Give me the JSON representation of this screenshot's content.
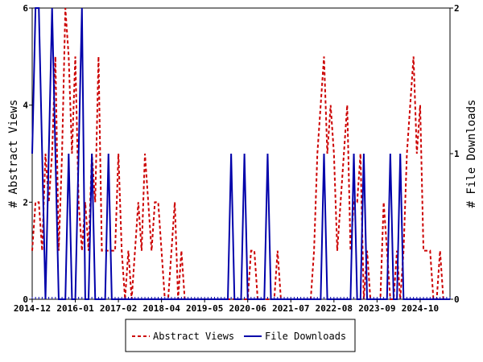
{
  "chart_data": {
    "type": "line",
    "ylabel_left": "# Abstract Views",
    "ylabel_right": "# File Downloads",
    "xlabel": "",
    "ylim_left": [
      0,
      6
    ],
    "ylim_right": [
      0,
      2
    ],
    "left_ticks": [
      "0",
      "2",
      "4",
      "6"
    ],
    "right_ticks": [
      "0",
      "1",
      "2"
    ],
    "x_tick_labels": [
      "2014-12",
      "2016-01",
      "2017-02",
      "2018-04",
      "2019-05",
      "2020-06",
      "2021-07",
      "2022-08",
      "2023-09",
      "2024-10"
    ],
    "month_count": 127,
    "grid": false,
    "legend_position": "bottom",
    "colors": {
      "abstract_views": "#cc0000",
      "file_downloads": "#0000aa"
    },
    "series": [
      {
        "name": "Abstract Views",
        "axis": "left",
        "style": "dashed",
        "values": [
          1,
          2,
          2,
          1,
          3,
          2,
          3,
          5,
          1,
          3,
          6,
          5,
          3,
          5,
          2,
          1,
          2,
          1,
          3,
          2,
          5,
          1,
          1,
          1,
          1,
          1,
          3,
          1,
          0,
          1,
          0,
          1,
          2,
          1,
          3,
          2,
          1,
          2,
          2,
          1,
          0,
          0,
          1,
          2,
          0,
          1,
          0,
          0,
          0,
          0,
          0,
          0,
          0,
          0,
          0,
          0,
          0,
          0,
          0,
          0,
          0,
          0,
          0,
          0,
          0,
          0,
          1,
          1,
          0,
          0,
          0,
          0,
          0,
          0,
          1,
          0,
          0,
          0,
          0,
          0,
          0,
          0,
          0,
          0,
          0,
          1,
          3,
          4,
          5,
          3,
          4,
          3,
          1,
          2,
          3,
          4,
          1,
          2,
          2,
          3,
          0,
          1,
          0,
          0,
          0,
          0,
          2,
          1,
          0,
          0,
          1,
          0,
          1,
          3,
          4,
          5,
          3,
          4,
          1,
          1,
          1,
          0,
          0,
          1,
          0,
          0,
          0
        ]
      },
      {
        "name": "File Downloads",
        "axis": "right",
        "style": "solid",
        "values": [
          1,
          2,
          2,
          1,
          0,
          1,
          2,
          1,
          0,
          0,
          0,
          1,
          0,
          0,
          1,
          2,
          0,
          0,
          1,
          0,
          0,
          0,
          0,
          1,
          0,
          0,
          0,
          0,
          0,
          0,
          0,
          0,
          0,
          0,
          0,
          0,
          0,
          0,
          0,
          0,
          0,
          0,
          0,
          0,
          0,
          0,
          0,
          0,
          0,
          0,
          0,
          0,
          0,
          0,
          0,
          0,
          0,
          0,
          0,
          0,
          1,
          0,
          0,
          0,
          1,
          0,
          0,
          0,
          0,
          0,
          0,
          1,
          0,
          0,
          0,
          0,
          0,
          0,
          0,
          0,
          0,
          0,
          0,
          0,
          0,
          0,
          0,
          0,
          1,
          0,
          0,
          0,
          0,
          0,
          0,
          0,
          0,
          1,
          0,
          0,
          1,
          0,
          0,
          0,
          0,
          0,
          0,
          0,
          1,
          0,
          0,
          1,
          0,
          0,
          0,
          0,
          0,
          0,
          0,
          0,
          0,
          0,
          0,
          0,
          0,
          0,
          0
        ]
      }
    ]
  },
  "legend": {
    "abstract_views": "Abstract Views",
    "file_downloads": "File Downloads"
  }
}
